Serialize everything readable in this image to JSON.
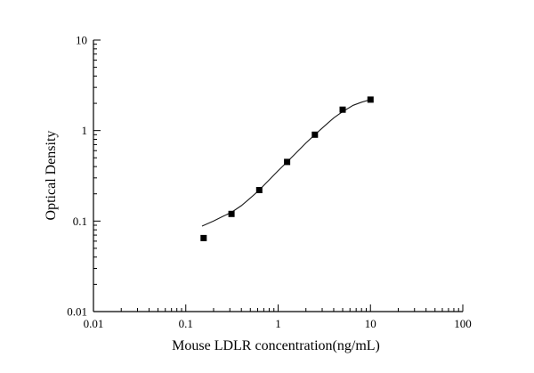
{
  "figure": {
    "background": "#ffffff"
  },
  "chart_data": {
    "type": "scatter",
    "title": "",
    "xlabel": "Mouse LDLR concentration(ng/mL)",
    "ylabel": "Optical Density",
    "xscale": "log",
    "yscale": "log",
    "xlim": [
      0.01,
      100
    ],
    "ylim": [
      0.01,
      10
    ],
    "x_tick_labels": [
      "0.01",
      "0.1",
      "1",
      "10",
      "100"
    ],
    "y_tick_labels": [
      "0.01",
      "0.1",
      "1",
      "10"
    ],
    "grid": false,
    "legend": false,
    "marker": "square",
    "colors": {
      "marker": "#000000",
      "line": "#1a1a1a",
      "axis": "#000000"
    },
    "series": [
      {
        "name": "standard-curve-points",
        "points": [
          [
            0.156,
            0.065
          ],
          [
            0.3125,
            0.12
          ],
          [
            0.625,
            0.22
          ],
          [
            1.25,
            0.45
          ],
          [
            2.5,
            0.9
          ],
          [
            5,
            1.7
          ],
          [
            10,
            2.2
          ]
        ]
      }
    ],
    "fit_curve": [
      [
        0.15,
        0.088
      ],
      [
        0.2,
        0.1
      ],
      [
        0.25,
        0.112
      ],
      [
        0.3125,
        0.125
      ],
      [
        0.4,
        0.148
      ],
      [
        0.5,
        0.18
      ],
      [
        0.625,
        0.22
      ],
      [
        0.8,
        0.285
      ],
      [
        1.0,
        0.36
      ],
      [
        1.25,
        0.45
      ],
      [
        1.6,
        0.58
      ],
      [
        2.0,
        0.73
      ],
      [
        2.5,
        0.9
      ],
      [
        3.2,
        1.13
      ],
      [
        4.0,
        1.38
      ],
      [
        5.0,
        1.62
      ],
      [
        6.5,
        1.9
      ],
      [
        8.0,
        2.06
      ],
      [
        10.0,
        2.2
      ]
    ]
  }
}
